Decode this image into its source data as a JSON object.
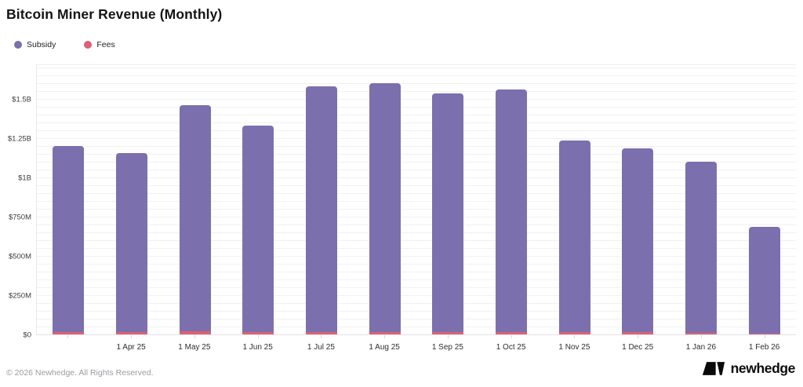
{
  "header": {
    "title": "Bitcoin Miner Revenue (Monthly)"
  },
  "legend": {
    "items": [
      {
        "label": "Subsidy",
        "color": "#7b70ad"
      },
      {
        "label": "Fees",
        "color": "#dc6075"
      }
    ]
  },
  "chart_data": {
    "type": "bar",
    "stacked": true,
    "title": "Bitcoin Miner Revenue (Monthly)",
    "unit": "USD millions",
    "categories": [
      "",
      "1 Apr 25",
      "1 May 25",
      "1 Jun 25",
      "1 Jul 25",
      "1 Aug 25",
      "1 Sep 25",
      "1 Oct 25",
      "1 Nov 25",
      "1 Dec 25",
      "1 Jan 26",
      "1 Feb 26"
    ],
    "series": [
      {
        "name": "Subsidy",
        "color": "#7b70ad",
        "values": [
          1190,
          1147,
          1452,
          1327,
          1576,
          1597,
          1532,
          1554,
          1227,
          1177,
          1097,
          684
        ]
      },
      {
        "name": "Fees",
        "color": "#dc6075",
        "values": [
          15,
          13,
          18,
          13,
          14,
          13,
          13,
          16,
          13,
          13,
          8,
          6
        ]
      }
    ],
    "yticks": [
      {
        "label": "$0",
        "value": 0
      },
      {
        "label": "$250M",
        "value": 250
      },
      {
        "label": "$500M",
        "value": 500
      },
      {
        "label": "$750M",
        "value": 750
      },
      {
        "label": "$1B",
        "value": 1000
      },
      {
        "label": "$1.25B",
        "value": 1250
      },
      {
        "label": "$1.5B",
        "value": 1500
      }
    ],
    "ylim": [
      0,
      1725
    ],
    "grid": true,
    "grid_step": 50,
    "legend_position": "top-left"
  },
  "footer": {
    "copyright": "© 2026 Newhedge. All Rights Reserved.",
    "brand": "newhedge"
  }
}
